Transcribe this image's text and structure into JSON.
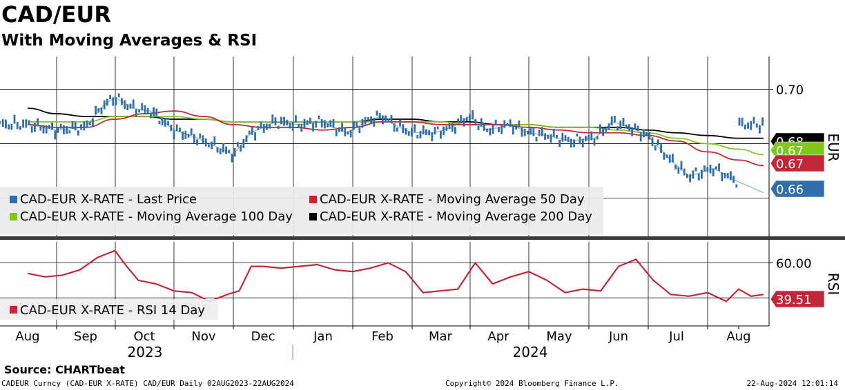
{
  "title": "CAD/EUR",
  "subtitle": "With Moving Averages & RSI",
  "source": "Source: CHARTbeat",
  "footer": {
    "left": "CADEUR Curncy (CAD-EUR X-RATE) CAD/EUR  Daily 02AUG2023-22AUG2024",
    "center": "Copyright© 2024 Bloomberg Finance L.P.",
    "right": "22-Aug-2024 12:01:14"
  },
  "colors": {
    "price": "#2f6ea8",
    "ma50": "#c0283a",
    "ma100": "#7ec81e",
    "ma200": "#000000",
    "rsi": "#c0283a",
    "legend_bg": "#ececec"
  },
  "chart_data": [
    {
      "type": "line",
      "panel": "price",
      "y_axis_label": "EUR",
      "ylim": [
        0.646,
        0.712
      ],
      "y_ticks": [
        {
          "value": 0.7,
          "label": "0.70"
        }
      ],
      "x_months": [
        "Aug",
        "Sep",
        "Oct",
        "Nov",
        "Dec",
        "Jan",
        "Feb",
        "Mar",
        "Apr",
        "May",
        "Jun",
        "Jul",
        "Aug"
      ],
      "x_years": [
        "2023",
        "2024"
      ],
      "month_index": [
        0,
        1,
        2,
        3,
        4,
        5,
        6,
        7,
        8,
        9,
        10,
        11,
        12
      ],
      "series": [
        {
          "name": "CAD-EUR X-RATE - Last Price",
          "x": [
            0,
            0.5,
            1,
            1.3,
            1.5,
            1.8,
            2.1,
            2.5,
            2.9,
            3.2,
            3.5,
            3.8,
            4.2,
            4.6,
            5,
            5.4,
            5.8,
            6,
            6.2,
            6.5,
            6.9,
            7.2,
            7.5,
            7.8,
            8.2,
            8.5,
            8.8,
            9.2,
            9.6,
            9.9,
            10.2,
            10.5,
            10.9,
            11.2,
            11.6,
            11.9,
            12.2,
            12.4
          ],
          "values": [
            0.687,
            0.685,
            0.686,
            0.694,
            0.697,
            0.693,
            0.692,
            0.685,
            0.682,
            0.679,
            0.676,
            0.684,
            0.688,
            0.687,
            0.688,
            0.684,
            0.689,
            0.69,
            0.687,
            0.684,
            0.684,
            0.686,
            0.69,
            0.685,
            0.687,
            0.684,
            0.683,
            0.681,
            0.682,
            0.688,
            0.686,
            0.683,
            0.674,
            0.668,
            0.671,
            0.667,
            0.664,
            0.662
          ]
        },
        {
          "name": "CAD-EUR X-RATE - Moving Average 50 Day",
          "x": [
            0,
            0.5,
            1,
            1.5,
            2,
            2.5,
            3,
            3.5,
            4,
            4.5,
            5,
            5.5,
            6,
            6.5,
            7,
            7.5,
            8,
            8.5,
            9,
            9.5,
            10,
            10.5,
            11,
            11.5,
            12,
            12.4
          ],
          "values": [
            0.687,
            0.686,
            0.686,
            0.689,
            0.691,
            0.692,
            0.69,
            0.687,
            0.686,
            0.686,
            0.685,
            0.686,
            0.688,
            0.688,
            0.687,
            0.687,
            0.687,
            0.686,
            0.685,
            0.684,
            0.684,
            0.683,
            0.681,
            0.677,
            0.674,
            0.672
          ]
        },
        {
          "name": "CAD-EUR X-RATE - Moving Average 100 Day",
          "x": [
            0,
            0.5,
            1,
            1.5,
            2,
            2.5,
            3,
            3.5,
            4,
            4.5,
            5,
            5.5,
            6,
            6.5,
            7,
            7.5,
            8,
            8.5,
            9,
            9.5,
            10,
            10.5,
            11,
            11.5,
            12,
            12.4
          ],
          "values": [
            0.688,
            0.688,
            0.688,
            0.69,
            0.69,
            0.69,
            0.689,
            0.688,
            0.688,
            0.688,
            0.688,
            0.688,
            0.688,
            0.688,
            0.688,
            0.687,
            0.687,
            0.687,
            0.686,
            0.686,
            0.685,
            0.684,
            0.682,
            0.68,
            0.678,
            0.676
          ]
        },
        {
          "name": "CAD-EUR X-RATE - Moving Average 200 Day",
          "x": [
            0,
            0.5,
            1,
            1.5,
            2,
            2.5,
            3,
            3.5,
            4,
            4.5,
            5,
            5.5,
            6,
            6.5,
            7,
            7.5,
            8,
            8.5,
            9,
            9.5,
            10,
            10.5,
            11,
            11.5,
            12,
            12.4
          ],
          "values": [
            0.693,
            0.691,
            0.69,
            0.69,
            0.69,
            0.689,
            0.689,
            0.688,
            0.688,
            0.688,
            0.688,
            0.688,
            0.689,
            0.689,
            0.688,
            0.688,
            0.687,
            0.687,
            0.686,
            0.686,
            0.686,
            0.685,
            0.684,
            0.683,
            0.682,
            0.682
          ]
        }
      ],
      "value_tags": [
        {
          "label": "0.68",
          "color": "#000000",
          "text_color": "#ffffff"
        },
        {
          "label": "0.67",
          "color": "#7ec81e",
          "text_color": "#ffffff"
        },
        {
          "label": "0.67",
          "color": "#c0283a",
          "text_color": "#ffffff"
        },
        {
          "label": "0.66",
          "color": "#2f6ea8",
          "text_color": "#ffffff"
        }
      ],
      "legend": [
        {
          "label": "CAD-EUR X-RATE - Last Price",
          "color": "#2f6ea8"
        },
        {
          "label": "CAD-EUR X-RATE - Moving Average 50 Day",
          "color": "#c0283a"
        },
        {
          "label": "CAD-EUR X-RATE - Moving Average 100 Day",
          "color": "#7ec81e"
        },
        {
          "label": "CAD-EUR X-RATE - Moving Average 200 Day",
          "color": "#000000"
        }
      ]
    },
    {
      "type": "line",
      "panel": "rsi",
      "y_axis_label": "RSI",
      "ylim": [
        24,
        72
      ],
      "y_ticks": [
        {
          "value": 60,
          "label": "60.00"
        }
      ],
      "series": [
        {
          "name": "CAD-EUR X-RATE - RSI 14 Day",
          "x": [
            0,
            0.3,
            0.6,
            0.9,
            1.2,
            1.5,
            1.7,
            1.9,
            2.2,
            2.5,
            2.8,
            3.1,
            3.4,
            3.6,
            3.8,
            4.0,
            4.3,
            4.6,
            4.9,
            5.2,
            5.5,
            5.8,
            6.1,
            6.4,
            6.7,
            7.0,
            7.3,
            7.6,
            7.9,
            8.2,
            8.5,
            8.8,
            9.1,
            9.4,
            9.7,
            10.0,
            10.3,
            10.6,
            10.9,
            11.2,
            11.5,
            11.8,
            12.0,
            12.2,
            12.4
          ],
          "values": [
            54,
            52,
            53,
            56,
            63,
            67,
            58,
            50,
            48,
            44,
            43,
            38,
            42,
            44,
            58,
            58,
            57,
            58,
            59,
            56,
            55,
            57,
            60,
            55,
            43,
            44,
            45,
            60,
            48,
            52,
            55,
            50,
            43,
            45,
            44,
            58,
            62,
            50,
            42,
            41,
            43,
            38,
            45,
            41,
            42
          ]
        }
      ],
      "value_tags": [
        {
          "label": "39.51",
          "color": "#c0283a",
          "text_color": "#ffffff"
        }
      ],
      "legend": [
        {
          "label": "CAD-EUR X-RATE - RSI 14 Day",
          "color": "#c0283a"
        }
      ]
    }
  ]
}
